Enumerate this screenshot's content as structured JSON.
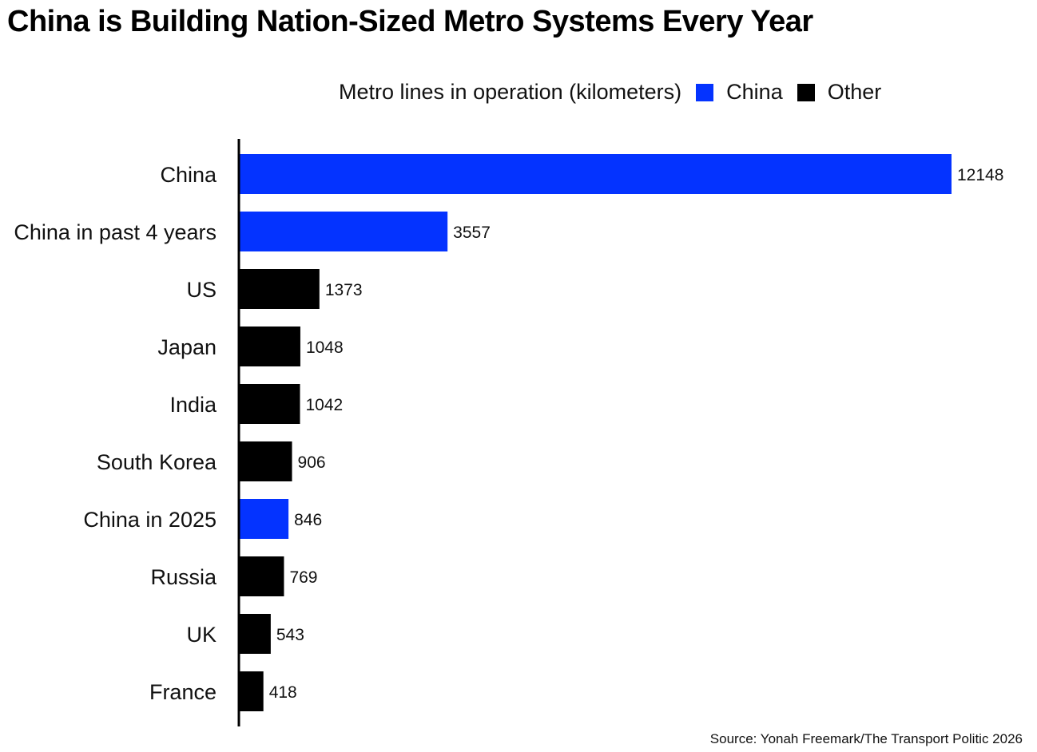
{
  "chart_data": {
    "type": "bar",
    "orientation": "horizontal",
    "title": "China is Building Nation-Sized Metro Systems Every Year",
    "legend_title": "Metro lines in operation (kilometers)",
    "legend": [
      {
        "name": "China",
        "color": "#0433ff"
      },
      {
        "name": "Other",
        "color": "#000000"
      }
    ],
    "legend_position": "top-right",
    "categories": [
      "China",
      "China in past 4 years",
      "US",
      "Japan",
      "India",
      "South Korea",
      "China in 2025",
      "Russia",
      "UK",
      "France"
    ],
    "values": [
      12148,
      3557,
      1373,
      1048,
      1042,
      906,
      846,
      769,
      543,
      418
    ],
    "groups": [
      "China",
      "China",
      "Other",
      "Other",
      "Other",
      "Other",
      "China",
      "Other",
      "Other",
      "Other"
    ],
    "value_labels": [
      "12148",
      "3557",
      "1373",
      "1048",
      "1042",
      "906",
      "846",
      "769",
      "543",
      "418"
    ],
    "xlabel": "",
    "ylabel": "",
    "xlim": [
      0,
      12148
    ],
    "grid": false,
    "source": "Source: Yonah Freemark/The Transport Politic 2026"
  }
}
